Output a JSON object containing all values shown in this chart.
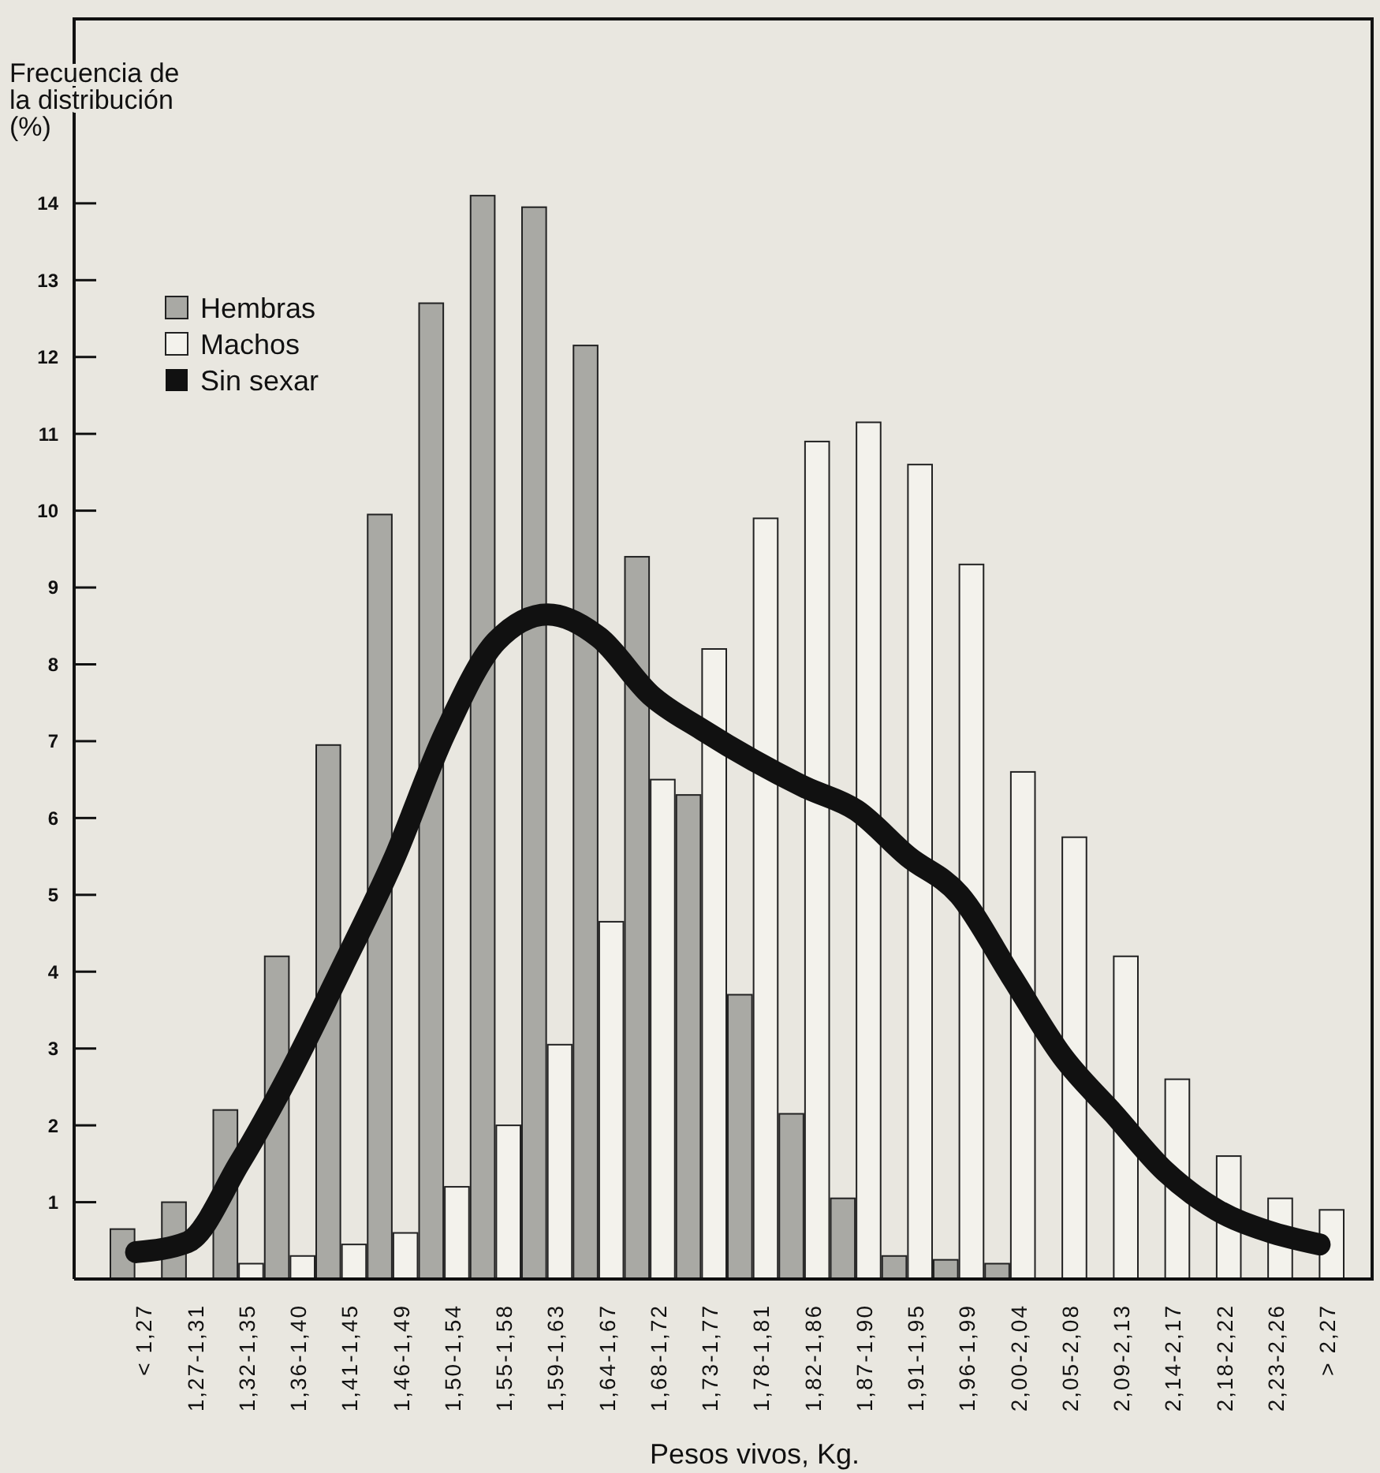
{
  "chart_data": {
    "type": "bar",
    "ylabel": "Frecuencia de\nla distribución\n(%)",
    "xlabel": "Pesos vivos, Kg.",
    "categories": [
      "< 1,27",
      "1,27-1,31",
      "1,32-1,35",
      "1,36-1,40",
      "1,41-1,45",
      "1,46-1,49",
      "1,50-1,54",
      "1,55-1,58",
      "1,59-1,63",
      "1,64-1,67",
      "1,68-1,72",
      "1,73-1,77",
      "1,78-1,81",
      "1,82-1,86",
      "1,87-1,90",
      "1,91-1,95",
      "1,96-1,99",
      "2,00-2,04",
      "2,05-2,08",
      "2,09-2,13",
      "2,14-2,17",
      "2,18-2,22",
      "2,23-2,26",
      "> 2,27"
    ],
    "series": [
      {
        "name": "Hembras",
        "color": "#a9a9a4",
        "values": [
          0.65,
          1.0,
          2.2,
          4.2,
          6.95,
          9.95,
          12.7,
          14.1,
          13.95,
          12.15,
          9.4,
          6.3,
          3.7,
          2.15,
          1.05,
          0.3,
          0.25,
          0.2,
          null,
          null,
          null,
          null,
          null,
          null
        ]
      },
      {
        "name": "Machos",
        "color": "#f3f2ec",
        "values": [
          null,
          null,
          0.2,
          0.3,
          0.45,
          0.6,
          1.2,
          2.0,
          3.05,
          4.65,
          6.5,
          8.2,
          9.9,
          10.9,
          11.15,
          10.6,
          9.3,
          6.6,
          5.75,
          4.2,
          2.6,
          1.6,
          1.05,
          0.9
        ]
      },
      {
        "name": "Sin sexar",
        "type": "line",
        "color": "#111111",
        "values": [
          0.35,
          0.48,
          1.5,
          2.7,
          4.05,
          5.45,
          7.1,
          8.3,
          8.65,
          8.35,
          7.6,
          7.15,
          6.75,
          6.4,
          6.1,
          5.5,
          5.0,
          3.95,
          2.9,
          2.15,
          1.4,
          0.9,
          0.62,
          0.45
        ]
      }
    ],
    "ylim": [
      0,
      16.4
    ],
    "yticks": [
      1,
      2,
      3,
      4,
      5,
      6,
      7,
      8,
      9,
      10,
      11,
      12,
      13,
      14
    ],
    "grid": false,
    "legend": "top left",
    "line_style": "solid"
  }
}
